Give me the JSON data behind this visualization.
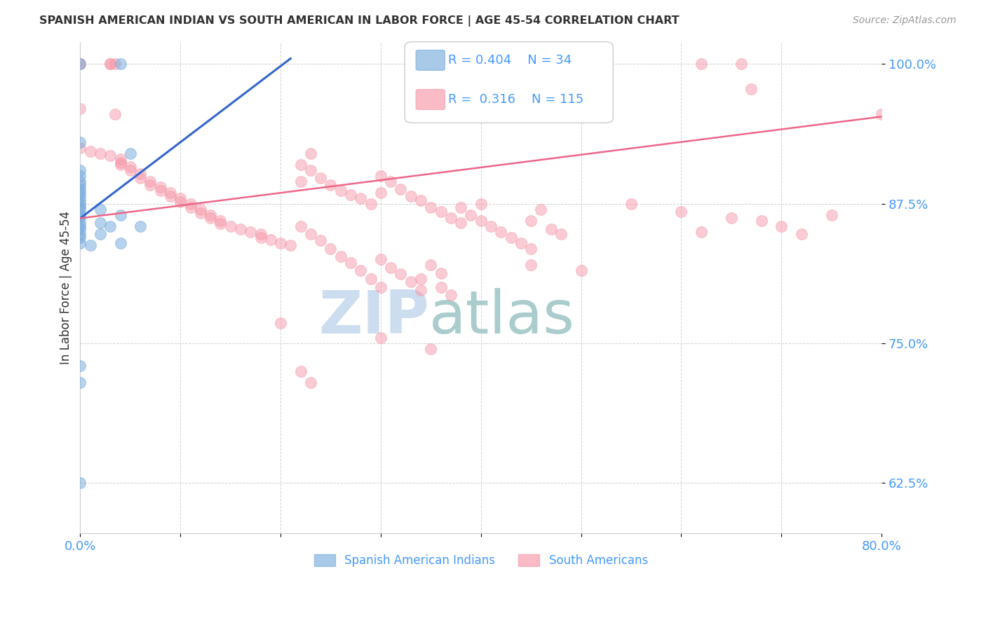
{
  "title": "SPANISH AMERICAN INDIAN VS SOUTH AMERICAN IN LABOR FORCE | AGE 45-54 CORRELATION CHART",
  "source": "Source: ZipAtlas.com",
  "ylabel": "In Labor Force | Age 45-54",
  "xlim": [
    0.0,
    0.8
  ],
  "ylim": [
    0.58,
    1.02
  ],
  "yticks": [
    0.625,
    0.75,
    0.875,
    1.0
  ],
  "ytick_labels": [
    "62.5%",
    "75.0%",
    "87.5%",
    "100.0%"
  ],
  "grid_color": "#cccccc",
  "background_color": "#ffffff",
  "blue_color": "#7aaddd",
  "pink_color": "#f799aa",
  "blue_line_color": "#3366cc",
  "pink_line_color": "#ee6688",
  "R_blue": 0.404,
  "N_blue": 34,
  "R_pink": 0.316,
  "N_pink": 115,
  "tick_color": "#4499ff",
  "blue_scatter": [
    [
      0.0,
      1.0
    ],
    [
      0.04,
      1.0
    ],
    [
      0.0,
      0.93
    ],
    [
      0.05,
      0.92
    ],
    [
      0.0,
      0.905
    ],
    [
      0.0,
      0.9
    ],
    [
      0.0,
      0.895
    ],
    [
      0.0,
      0.892
    ],
    [
      0.0,
      0.888
    ],
    [
      0.0,
      0.885
    ],
    [
      0.0,
      0.882
    ],
    [
      0.0,
      0.878
    ],
    [
      0.0,
      0.875
    ],
    [
      0.0,
      0.872
    ],
    [
      0.0,
      0.87
    ],
    [
      0.0,
      0.865
    ],
    [
      0.0,
      0.862
    ],
    [
      0.0,
      0.858
    ],
    [
      0.0,
      0.855
    ],
    [
      0.0,
      0.852
    ],
    [
      0.0,
      0.848
    ],
    [
      0.0,
      0.845
    ],
    [
      0.02,
      0.87
    ],
    [
      0.02,
      0.858
    ],
    [
      0.02,
      0.848
    ],
    [
      0.03,
      0.855
    ],
    [
      0.04,
      0.865
    ],
    [
      0.04,
      0.84
    ],
    [
      0.06,
      0.855
    ],
    [
      0.0,
      0.73
    ],
    [
      0.0,
      0.715
    ],
    [
      0.0,
      0.84
    ],
    [
      0.01,
      0.838
    ],
    [
      0.0,
      0.625
    ]
  ],
  "pink_scatter": [
    [
      0.0,
      1.0
    ],
    [
      0.0,
      1.0
    ],
    [
      0.03,
      1.0
    ],
    [
      0.03,
      1.0
    ],
    [
      0.035,
      1.0
    ],
    [
      0.38,
      1.0
    ],
    [
      0.62,
      1.0
    ],
    [
      0.66,
      1.0
    ],
    [
      0.67,
      0.978
    ],
    [
      0.0,
      0.96
    ],
    [
      0.035,
      0.955
    ],
    [
      0.0,
      0.925
    ],
    [
      0.01,
      0.922
    ],
    [
      0.02,
      0.92
    ],
    [
      0.03,
      0.918
    ],
    [
      0.04,
      0.915
    ],
    [
      0.04,
      0.912
    ],
    [
      0.04,
      0.91
    ],
    [
      0.05,
      0.908
    ],
    [
      0.05,
      0.905
    ],
    [
      0.06,
      0.902
    ],
    [
      0.06,
      0.898
    ],
    [
      0.07,
      0.895
    ],
    [
      0.07,
      0.892
    ],
    [
      0.08,
      0.89
    ],
    [
      0.08,
      0.887
    ],
    [
      0.09,
      0.885
    ],
    [
      0.09,
      0.882
    ],
    [
      0.1,
      0.88
    ],
    [
      0.1,
      0.877
    ],
    [
      0.11,
      0.875
    ],
    [
      0.11,
      0.872
    ],
    [
      0.12,
      0.87
    ],
    [
      0.12,
      0.867
    ],
    [
      0.13,
      0.865
    ],
    [
      0.13,
      0.862
    ],
    [
      0.14,
      0.86
    ],
    [
      0.14,
      0.857
    ],
    [
      0.15,
      0.855
    ],
    [
      0.16,
      0.852
    ],
    [
      0.17,
      0.85
    ],
    [
      0.18,
      0.848
    ],
    [
      0.18,
      0.845
    ],
    [
      0.19,
      0.843
    ],
    [
      0.2,
      0.84
    ],
    [
      0.21,
      0.838
    ],
    [
      0.22,
      0.91
    ],
    [
      0.22,
      0.895
    ],
    [
      0.23,
      0.92
    ],
    [
      0.23,
      0.905
    ],
    [
      0.24,
      0.898
    ],
    [
      0.25,
      0.892
    ],
    [
      0.26,
      0.887
    ],
    [
      0.27,
      0.883
    ],
    [
      0.28,
      0.88
    ],
    [
      0.29,
      0.875
    ],
    [
      0.3,
      0.9
    ],
    [
      0.3,
      0.885
    ],
    [
      0.31,
      0.895
    ],
    [
      0.32,
      0.888
    ],
    [
      0.33,
      0.882
    ],
    [
      0.34,
      0.878
    ],
    [
      0.35,
      0.872
    ],
    [
      0.36,
      0.868
    ],
    [
      0.37,
      0.862
    ],
    [
      0.38,
      0.858
    ],
    [
      0.38,
      0.872
    ],
    [
      0.39,
      0.865
    ],
    [
      0.4,
      0.86
    ],
    [
      0.4,
      0.875
    ],
    [
      0.41,
      0.855
    ],
    [
      0.42,
      0.85
    ],
    [
      0.43,
      0.845
    ],
    [
      0.44,
      0.84
    ],
    [
      0.45,
      0.835
    ],
    [
      0.45,
      0.86
    ],
    [
      0.46,
      0.87
    ],
    [
      0.47,
      0.852
    ],
    [
      0.48,
      0.848
    ],
    [
      0.22,
      0.855
    ],
    [
      0.23,
      0.848
    ],
    [
      0.24,
      0.842
    ],
    [
      0.25,
      0.835
    ],
    [
      0.26,
      0.828
    ],
    [
      0.27,
      0.822
    ],
    [
      0.28,
      0.815
    ],
    [
      0.29,
      0.808
    ],
    [
      0.3,
      0.8
    ],
    [
      0.3,
      0.825
    ],
    [
      0.31,
      0.818
    ],
    [
      0.32,
      0.812
    ],
    [
      0.33,
      0.805
    ],
    [
      0.34,
      0.798
    ],
    [
      0.34,
      0.808
    ],
    [
      0.35,
      0.82
    ],
    [
      0.36,
      0.813
    ],
    [
      0.36,
      0.8
    ],
    [
      0.37,
      0.793
    ],
    [
      0.2,
      0.768
    ],
    [
      0.3,
      0.755
    ],
    [
      0.35,
      0.745
    ],
    [
      0.22,
      0.725
    ],
    [
      0.23,
      0.715
    ],
    [
      0.45,
      0.82
    ],
    [
      0.5,
      0.815
    ],
    [
      0.55,
      0.875
    ],
    [
      0.6,
      0.868
    ],
    [
      0.65,
      0.862
    ],
    [
      0.62,
      0.85
    ],
    [
      0.68,
      0.86
    ],
    [
      0.7,
      0.855
    ],
    [
      0.72,
      0.848
    ],
    [
      0.75,
      0.865
    ],
    [
      0.8,
      0.955
    ]
  ],
  "blue_line_x": [
    0.0,
    0.21
  ],
  "blue_line_y": [
    0.862,
    1.005
  ],
  "pink_line_x": [
    0.0,
    0.8
  ],
  "pink_line_y": [
    0.862,
    0.953
  ],
  "watermark_zip": "ZIP",
  "watermark_atlas": "atlas",
  "watermark_zip_color": "#ccddf0",
  "watermark_atlas_color": "#aacccc",
  "legend_label_blue": "Spanish American Indians",
  "legend_label_pink": "South Americans"
}
